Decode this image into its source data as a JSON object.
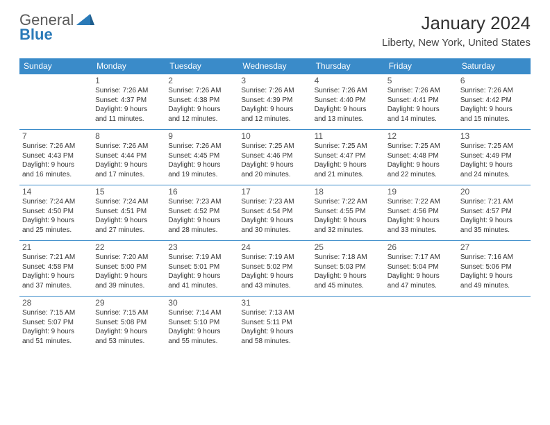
{
  "logo": {
    "line1": "General",
    "line2": "Blue"
  },
  "title": "January 2024",
  "location": "Liberty, New York, United States",
  "colors": {
    "header_bg": "#3a8bc9",
    "header_fg": "#ffffff",
    "row_border": "#3a8bc9",
    "text": "#333333",
    "logo_gray": "#5a5a5a",
    "logo_blue": "#2a7ab8",
    "page_bg": "#ffffff"
  },
  "day_headers": [
    "Sunday",
    "Monday",
    "Tuesday",
    "Wednesday",
    "Thursday",
    "Friday",
    "Saturday"
  ],
  "weeks": [
    [
      null,
      {
        "n": "1",
        "sr": "Sunrise: 7:26 AM",
        "ss": "Sunset: 4:37 PM",
        "d1": "Daylight: 9 hours",
        "d2": "and 11 minutes."
      },
      {
        "n": "2",
        "sr": "Sunrise: 7:26 AM",
        "ss": "Sunset: 4:38 PM",
        "d1": "Daylight: 9 hours",
        "d2": "and 12 minutes."
      },
      {
        "n": "3",
        "sr": "Sunrise: 7:26 AM",
        "ss": "Sunset: 4:39 PM",
        "d1": "Daylight: 9 hours",
        "d2": "and 12 minutes."
      },
      {
        "n": "4",
        "sr": "Sunrise: 7:26 AM",
        "ss": "Sunset: 4:40 PM",
        "d1": "Daylight: 9 hours",
        "d2": "and 13 minutes."
      },
      {
        "n": "5",
        "sr": "Sunrise: 7:26 AM",
        "ss": "Sunset: 4:41 PM",
        "d1": "Daylight: 9 hours",
        "d2": "and 14 minutes."
      },
      {
        "n": "6",
        "sr": "Sunrise: 7:26 AM",
        "ss": "Sunset: 4:42 PM",
        "d1": "Daylight: 9 hours",
        "d2": "and 15 minutes."
      }
    ],
    [
      {
        "n": "7",
        "sr": "Sunrise: 7:26 AM",
        "ss": "Sunset: 4:43 PM",
        "d1": "Daylight: 9 hours",
        "d2": "and 16 minutes."
      },
      {
        "n": "8",
        "sr": "Sunrise: 7:26 AM",
        "ss": "Sunset: 4:44 PM",
        "d1": "Daylight: 9 hours",
        "d2": "and 17 minutes."
      },
      {
        "n": "9",
        "sr": "Sunrise: 7:26 AM",
        "ss": "Sunset: 4:45 PM",
        "d1": "Daylight: 9 hours",
        "d2": "and 19 minutes."
      },
      {
        "n": "10",
        "sr": "Sunrise: 7:25 AM",
        "ss": "Sunset: 4:46 PM",
        "d1": "Daylight: 9 hours",
        "d2": "and 20 minutes."
      },
      {
        "n": "11",
        "sr": "Sunrise: 7:25 AM",
        "ss": "Sunset: 4:47 PM",
        "d1": "Daylight: 9 hours",
        "d2": "and 21 minutes."
      },
      {
        "n": "12",
        "sr": "Sunrise: 7:25 AM",
        "ss": "Sunset: 4:48 PM",
        "d1": "Daylight: 9 hours",
        "d2": "and 22 minutes."
      },
      {
        "n": "13",
        "sr": "Sunrise: 7:25 AM",
        "ss": "Sunset: 4:49 PM",
        "d1": "Daylight: 9 hours",
        "d2": "and 24 minutes."
      }
    ],
    [
      {
        "n": "14",
        "sr": "Sunrise: 7:24 AM",
        "ss": "Sunset: 4:50 PM",
        "d1": "Daylight: 9 hours",
        "d2": "and 25 minutes."
      },
      {
        "n": "15",
        "sr": "Sunrise: 7:24 AM",
        "ss": "Sunset: 4:51 PM",
        "d1": "Daylight: 9 hours",
        "d2": "and 27 minutes."
      },
      {
        "n": "16",
        "sr": "Sunrise: 7:23 AM",
        "ss": "Sunset: 4:52 PM",
        "d1": "Daylight: 9 hours",
        "d2": "and 28 minutes."
      },
      {
        "n": "17",
        "sr": "Sunrise: 7:23 AM",
        "ss": "Sunset: 4:54 PM",
        "d1": "Daylight: 9 hours",
        "d2": "and 30 minutes."
      },
      {
        "n": "18",
        "sr": "Sunrise: 7:22 AM",
        "ss": "Sunset: 4:55 PM",
        "d1": "Daylight: 9 hours",
        "d2": "and 32 minutes."
      },
      {
        "n": "19",
        "sr": "Sunrise: 7:22 AM",
        "ss": "Sunset: 4:56 PM",
        "d1": "Daylight: 9 hours",
        "d2": "and 33 minutes."
      },
      {
        "n": "20",
        "sr": "Sunrise: 7:21 AM",
        "ss": "Sunset: 4:57 PM",
        "d1": "Daylight: 9 hours",
        "d2": "and 35 minutes."
      }
    ],
    [
      {
        "n": "21",
        "sr": "Sunrise: 7:21 AM",
        "ss": "Sunset: 4:58 PM",
        "d1": "Daylight: 9 hours",
        "d2": "and 37 minutes."
      },
      {
        "n": "22",
        "sr": "Sunrise: 7:20 AM",
        "ss": "Sunset: 5:00 PM",
        "d1": "Daylight: 9 hours",
        "d2": "and 39 minutes."
      },
      {
        "n": "23",
        "sr": "Sunrise: 7:19 AM",
        "ss": "Sunset: 5:01 PM",
        "d1": "Daylight: 9 hours",
        "d2": "and 41 minutes."
      },
      {
        "n": "24",
        "sr": "Sunrise: 7:19 AM",
        "ss": "Sunset: 5:02 PM",
        "d1": "Daylight: 9 hours",
        "d2": "and 43 minutes."
      },
      {
        "n": "25",
        "sr": "Sunrise: 7:18 AM",
        "ss": "Sunset: 5:03 PM",
        "d1": "Daylight: 9 hours",
        "d2": "and 45 minutes."
      },
      {
        "n": "26",
        "sr": "Sunrise: 7:17 AM",
        "ss": "Sunset: 5:04 PM",
        "d1": "Daylight: 9 hours",
        "d2": "and 47 minutes."
      },
      {
        "n": "27",
        "sr": "Sunrise: 7:16 AM",
        "ss": "Sunset: 5:06 PM",
        "d1": "Daylight: 9 hours",
        "d2": "and 49 minutes."
      }
    ],
    [
      {
        "n": "28",
        "sr": "Sunrise: 7:15 AM",
        "ss": "Sunset: 5:07 PM",
        "d1": "Daylight: 9 hours",
        "d2": "and 51 minutes."
      },
      {
        "n": "29",
        "sr": "Sunrise: 7:15 AM",
        "ss": "Sunset: 5:08 PM",
        "d1": "Daylight: 9 hours",
        "d2": "and 53 minutes."
      },
      {
        "n": "30",
        "sr": "Sunrise: 7:14 AM",
        "ss": "Sunset: 5:10 PM",
        "d1": "Daylight: 9 hours",
        "d2": "and 55 minutes."
      },
      {
        "n": "31",
        "sr": "Sunrise: 7:13 AM",
        "ss": "Sunset: 5:11 PM",
        "d1": "Daylight: 9 hours",
        "d2": "and 58 minutes."
      },
      null,
      null,
      null
    ]
  ]
}
